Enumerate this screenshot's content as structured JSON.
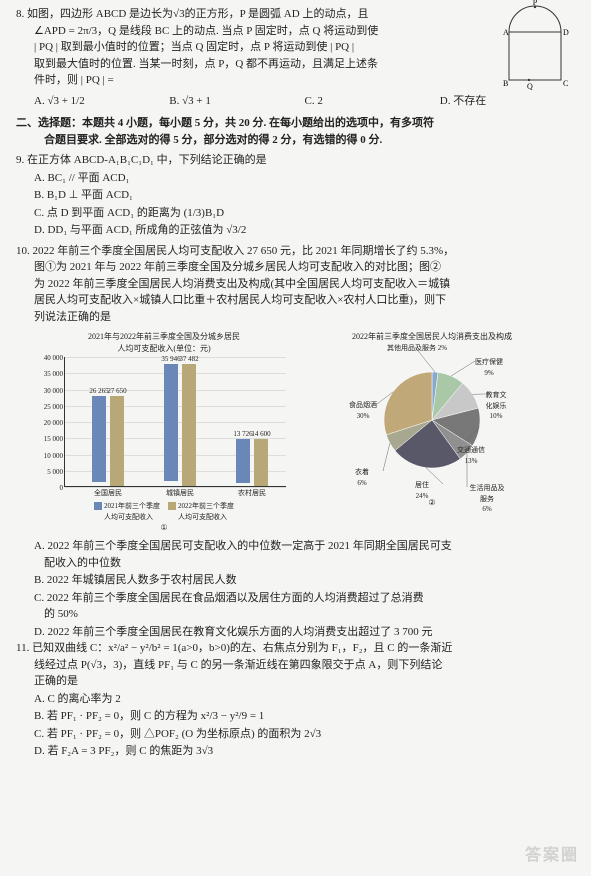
{
  "q8": {
    "num": "8.",
    "text_l1": "如图，四边形 ABCD 是边长为√3的正方形，P 是圆弧 AD 上的动点，且",
    "text_l2": "∠APD = 2π/3，Q 是线段 BC 上的动点. 当点 P 固定时，点 Q 将运动到使",
    "text_l3": "| PQ | 取到最小值时的位置；当点 Q 固定时，点 P 将运动到使 | PQ |",
    "text_l4": "取到最大值时的位置. 当某一时刻，点 P，Q 都不再运动，且满足上述条",
    "text_l5": "件时，则 | PQ | =",
    "A": "A. √3 + 1/2",
    "B": "B. √3 + 1",
    "C": "C. 2",
    "D": "D. 不存在",
    "fig": {
      "P": "P",
      "A": "A",
      "D": "D",
      "B": "B",
      "Q": "Q",
      "C": "C"
    }
  },
  "section2": {
    "head": "二、选择题：本题共 4 小题，每小题 5 分，共 20 分. 在每小题给出的选项中，有多项符",
    "head2": "合题目要求. 全部选对的得 5 分，部分选对的得 2 分，有选错的得 0 分."
  },
  "q9": {
    "num": "9.",
    "text": "在正方体 ABCD-A₁B₁C₁D₁ 中，下列结论正确的是",
    "A": "A. BC₁ // 平面 ACD₁",
    "B": "B. B₁D ⊥ 平面 ACD₁",
    "C": "C. 点 D 到平面 ACD₁ 的距离为 (1/3)B₁D",
    "D": "D. DD₁ 与平面 ACD₁ 所成角的正弦值为 √3/2"
  },
  "q10": {
    "num": "10.",
    "l1": "2022 年前三个季度全国居民人均可支配收入 27 650 元，比 2021 年同期增长了约 5.3%，",
    "l2": "图①为 2021 年与 2022 年前三季度全国及分城乡居民人均可支配收入的对比图；图②",
    "l3": "为 2022 年前三季度全国居民人均消费支出及构成(其中全国居民人均可支配收入＝城镇",
    "l4": "居民人均可支配收入×城镇人口比重＋农村居民人均可支配收入×农村人口比重)，则下",
    "l5": "列说法正确的是",
    "A": "A. 2022 年前三个季度全国居民可支配收入的中位数一定高于 2021 年同期全国居民可支",
    "A2": "配收入的中位数",
    "B": "B. 2022 年城镇居民人数多于农村居民人数",
    "C": "C. 2022 年前三个季度全国居民在食品烟酒以及居住方面的人均消费超过了总消费",
    "C2": "的 50%",
    "D": "D. 2022 年前三个季度全国居民在教育文化娱乐方面的人均消费支出超过了 3 700 元"
  },
  "bar_chart": {
    "title1": "2021年与2022年前三季度全国及分城乡居民",
    "title2": "人均可支配收入(单位：元)",
    "caption": "①",
    "ymax": 40000,
    "yticks": [
      0,
      5000,
      10000,
      15000,
      20000,
      25000,
      30000,
      35000,
      40000
    ],
    "ytick_labels": [
      "0",
      "5 000",
      "10 000",
      "15 000",
      "20 000",
      "25 000",
      "30 000",
      "35 000",
      "40 000"
    ],
    "groups": [
      {
        "label": "全国居民",
        "v1": 26265,
        "v2": 27650,
        "t1": "26 265",
        "t2": "27 650"
      },
      {
        "label": "城镇居民",
        "v1": 35946,
        "v2": 37482,
        "t1": "35 946",
        "t2": "37 482"
      },
      {
        "label": "农村居民",
        "v1": 13726,
        "v2": 14600,
        "t1": "13 726",
        "t2": "14 600"
      }
    ],
    "color1": "#6a87b8",
    "color2": "#b8a878",
    "legend1": "2021年前三个季度\n人均可支配收入",
    "legend2": "2022年前三个季度\n人均可支配收入",
    "bg": "#f5f5f3",
    "grid_color": "#dddddd"
  },
  "pie_chart": {
    "title1": "2022年前三季度全国居民人均消费支出及构成",
    "title2": "",
    "caption": "②",
    "slices": [
      {
        "label": "其他用品及服务 2%",
        "value": 2,
        "color": "#88a8d0"
      },
      {
        "label": "医疗保健\n9%",
        "value": 9,
        "color": "#a8c8a8"
      },
      {
        "label": "教育文化娱乐\n10%",
        "value": 10,
        "color": "#c8c8c8"
      },
      {
        "label": "交通通信\n13%",
        "value": 13,
        "color": "#787878"
      },
      {
        "label": "生活用品及服务\n6%",
        "value": 6,
        "color": "#909090"
      },
      {
        "label": "居住\n24%",
        "value": 24,
        "color": "#585868"
      },
      {
        "label": "衣着\n6%",
        "value": 6,
        "color": "#a8a890"
      },
      {
        "label": "食品烟酒\n30%",
        "value": 30,
        "color": "#c0a878"
      }
    ]
  },
  "q11": {
    "num": "11.",
    "l1": "已知双曲线 C：x²/a² − y²/b² = 1(a>0，b>0)的左、右焦点分别为 F₁，F₂，且 C 的一条渐近",
    "l2": "线经过点 P(√3，3)，直线 PF₁ 与 C 的另一条渐近线在第四象限交于点 A，则下列结论",
    "l3": "正确的是",
    "A": "A. C 的离心率为 2",
    "B": "B. 若 PF₁ · PF₂ = 0，则 C 的方程为 x²/3 − y²/9 = 1",
    "C": "C. 若 PF₁ · PF₂ = 0，则 △POF₂ (O 为坐标原点) 的面积为 2√3",
    "D": "D. 若 F₂A = 3 PF₂，则 C 的焦距为 3√3"
  },
  "watermark": "答案圈"
}
